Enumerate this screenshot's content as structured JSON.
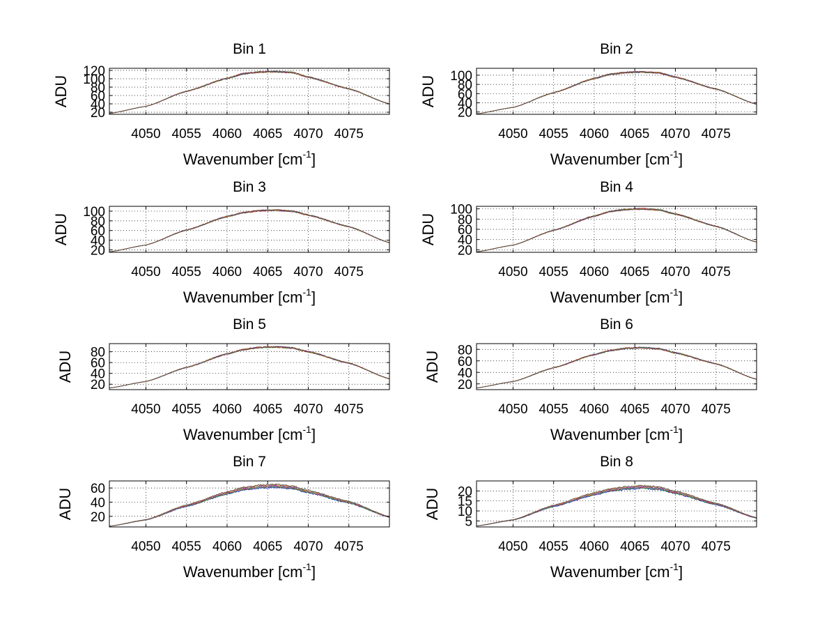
{
  "figure": {
    "panels": [
      {
        "title": "Bin 1",
        "ylabel": "ADU",
        "xlabel": "Wavenumber [cm",
        "xlabel_sup": "-1",
        "xlabel_end": "]"
      },
      {
        "title": "Bin 2",
        "ylabel": "ADU",
        "xlabel": "Wavenumber [cm",
        "xlabel_sup": "-1",
        "xlabel_end": "]"
      },
      {
        "title": "Bin 3",
        "ylabel": "ADU",
        "xlabel": "Wavenumber [cm",
        "xlabel_sup": "-1",
        "xlabel_end": "]"
      },
      {
        "title": "Bin 4",
        "ylabel": "ADU",
        "xlabel": "Wavenumber [cm",
        "xlabel_sup": "-1",
        "xlabel_end": "]"
      },
      {
        "title": "Bin 5",
        "ylabel": "ADU",
        "xlabel": "Wavenumber [cm",
        "xlabel_sup": "-1",
        "xlabel_end": "]"
      },
      {
        "title": "Bin 6",
        "ylabel": "ADU",
        "xlabel": "Wavenumber [cm",
        "xlabel_sup": "-1",
        "xlabel_end": "]"
      },
      {
        "title": "Bin 7",
        "ylabel": "ADU",
        "xlabel": "Wavenumber [cm",
        "xlabel_sup": "-1",
        "xlabel_end": "]"
      },
      {
        "title": "Bin 8",
        "ylabel": "ADU",
        "xlabel": "Wavenumber [cm",
        "xlabel_sup": "-1",
        "xlabel_end": "]"
      }
    ]
  },
  "chart_data": [
    {
      "type": "line",
      "title": "Bin 1",
      "xlabel": "Wavenumber [cm-1]",
      "ylabel": "ADU",
      "xlim": [
        4045.5,
        4080
      ],
      "ylim": [
        15,
        125
      ],
      "grid": true,
      "xticks": [
        4050,
        4055,
        4060,
        4065,
        4070,
        4075
      ],
      "yticks": [
        20,
        40,
        60,
        80,
        100,
        120
      ],
      "series_colors": [
        "#0000ff",
        "#00a000",
        "#ff0000",
        "#00bfbf",
        "#bf00bf",
        "#e0a000",
        "#404040"
      ],
      "x": [
        4045.5,
        4050,
        4055,
        4060,
        4062,
        4064,
        4066,
        4068,
        4070,
        4075,
        4080
      ],
      "y": [
        17,
        34,
        70,
        101,
        112,
        116,
        117,
        115,
        104,
        76,
        40
      ]
    },
    {
      "type": "line",
      "title": "Bin 2",
      "xlabel": "Wavenumber [cm-1]",
      "ylabel": "ADU",
      "xlim": [
        4045.5,
        4080
      ],
      "ylim": [
        15,
        115
      ],
      "grid": true,
      "xticks": [
        4050,
        4055,
        4060,
        4065,
        4070,
        4075
      ],
      "yticks": [
        20,
        40,
        60,
        80,
        100
      ],
      "series_colors": [
        "#0000ff",
        "#00a000",
        "#ff0000",
        "#00bfbf",
        "#bf00bf",
        "#e0a000",
        "#404040"
      ],
      "x": [
        4045.5,
        4050,
        4055,
        4060,
        4062,
        4064,
        4066,
        4068,
        4070,
        4075,
        4080
      ],
      "y": [
        16,
        30,
        62,
        93,
        102,
        106,
        107,
        105,
        96,
        70,
        37
      ]
    },
    {
      "type": "line",
      "title": "Bin 3",
      "xlabel": "Wavenumber [cm-1]",
      "ylabel": "ADU",
      "xlim": [
        4045.5,
        4080
      ],
      "ylim": [
        15,
        110
      ],
      "grid": true,
      "xticks": [
        4050,
        4055,
        4060,
        4065,
        4070,
        4075
      ],
      "yticks": [
        20,
        40,
        60,
        80,
        100
      ],
      "series_colors": [
        "#0000ff",
        "#00a000",
        "#ff0000",
        "#00bfbf",
        "#bf00bf",
        "#e0a000",
        "#404040"
      ],
      "x": [
        4045.5,
        4050,
        4055,
        4060,
        4062,
        4064,
        4066,
        4068,
        4070,
        4075,
        4080
      ],
      "y": [
        16,
        30,
        61,
        89,
        97,
        101,
        102,
        100,
        92,
        68,
        35
      ]
    },
    {
      "type": "line",
      "title": "Bin 4",
      "xlabel": "Wavenumber [cm-1]",
      "ylabel": "ADU",
      "xlim": [
        4045.5,
        4080
      ],
      "ylim": [
        15,
        105
      ],
      "grid": true,
      "xticks": [
        4050,
        4055,
        4060,
        4065,
        4070,
        4075
      ],
      "yticks": [
        20,
        40,
        60,
        80,
        100
      ],
      "series_colors": [
        "#0000ff",
        "#00a000",
        "#ff0000",
        "#00bfbf",
        "#bf00bf",
        "#e0a000",
        "#404040"
      ],
      "x": [
        4045.5,
        4050,
        4055,
        4060,
        4062,
        4064,
        4066,
        4068,
        4070,
        4075,
        4080
      ],
      "y": [
        16,
        29,
        58,
        86,
        95,
        99,
        100,
        98,
        90,
        66,
        35
      ]
    },
    {
      "type": "line",
      "title": "Bin 5",
      "xlabel": "Wavenumber [cm-1]",
      "ylabel": "ADU",
      "xlim": [
        4045.5,
        4080
      ],
      "ylim": [
        10,
        95
      ],
      "grid": true,
      "xticks": [
        4050,
        4055,
        4060,
        4065,
        4070,
        4075
      ],
      "yticks": [
        20,
        40,
        60,
        80
      ],
      "series_colors": [
        "#0000ff",
        "#00a000",
        "#ff0000",
        "#00bfbf",
        "#bf00bf",
        "#e0a000",
        "#404040"
      ],
      "x": [
        4045.5,
        4050,
        4055,
        4060,
        4062,
        4064,
        4066,
        4068,
        4070,
        4075,
        4080
      ],
      "y": [
        13,
        25,
        51,
        76,
        84,
        88,
        89,
        87,
        80,
        59,
        30
      ]
    },
    {
      "type": "line",
      "title": "Bin 6",
      "xlabel": "Wavenumber [cm-1]",
      "ylabel": "ADU",
      "xlim": [
        4045.5,
        4080
      ],
      "ylim": [
        10,
        90
      ],
      "grid": true,
      "xticks": [
        4050,
        4055,
        4060,
        4065,
        4070,
        4075
      ],
      "yticks": [
        20,
        40,
        60,
        80
      ],
      "series_colors": [
        "#0000ff",
        "#00a000",
        "#ff0000",
        "#00bfbf",
        "#bf00bf",
        "#e0a000",
        "#404040"
      ],
      "x": [
        4045.5,
        4050,
        4055,
        4060,
        4062,
        4064,
        4066,
        4068,
        4070,
        4075,
        4080
      ],
      "y": [
        13,
        24,
        48,
        71,
        78,
        82,
        83,
        81,
        74,
        55,
        28
      ]
    },
    {
      "type": "line",
      "title": "Bin 7",
      "xlabel": "Wavenumber [cm-1]",
      "ylabel": "ADU",
      "xlim": [
        4045.5,
        4080
      ],
      "ylim": [
        5,
        70
      ],
      "grid": true,
      "xticks": [
        4050,
        4055,
        4060,
        4065,
        4070,
        4075
      ],
      "yticks": [
        20,
        40,
        60
      ],
      "series_colors": [
        "#0000ff",
        "#00a000",
        "#ff0000",
        "#00bfbf",
        "#bf00bf",
        "#e0a000",
        "#404040"
      ],
      "x": [
        4045.5,
        4050,
        4055,
        4060,
        4062,
        4064,
        4066,
        4068,
        4070,
        4075,
        4080
      ],
      "y": [
        6,
        15,
        35,
        53,
        59,
        62,
        63,
        61,
        55,
        40,
        19
      ]
    },
    {
      "type": "line",
      "title": "Bin 8",
      "xlabel": "Wavenumber [cm-1]",
      "ylabel": "ADU",
      "xlim": [
        4045.5,
        4080
      ],
      "ylim": [
        2,
        25
      ],
      "grid": true,
      "xticks": [
        4050,
        4055,
        4060,
        4065,
        4070,
        4075
      ],
      "yticks": [
        5,
        10,
        15,
        20
      ],
      "series_colors": [
        "#0000ff",
        "#00a000",
        "#ff0000",
        "#00bfbf",
        "#bf00bf",
        "#e0a000",
        "#404040"
      ],
      "x": [
        4045.5,
        4050,
        4055,
        4060,
        4062,
        4064,
        4066,
        4068,
        4070,
        4075,
        4080
      ],
      "y": [
        2.5,
        5.5,
        12.5,
        18.5,
        20.5,
        21.5,
        22,
        21.3,
        19.3,
        13.5,
        6.5
      ]
    }
  ]
}
